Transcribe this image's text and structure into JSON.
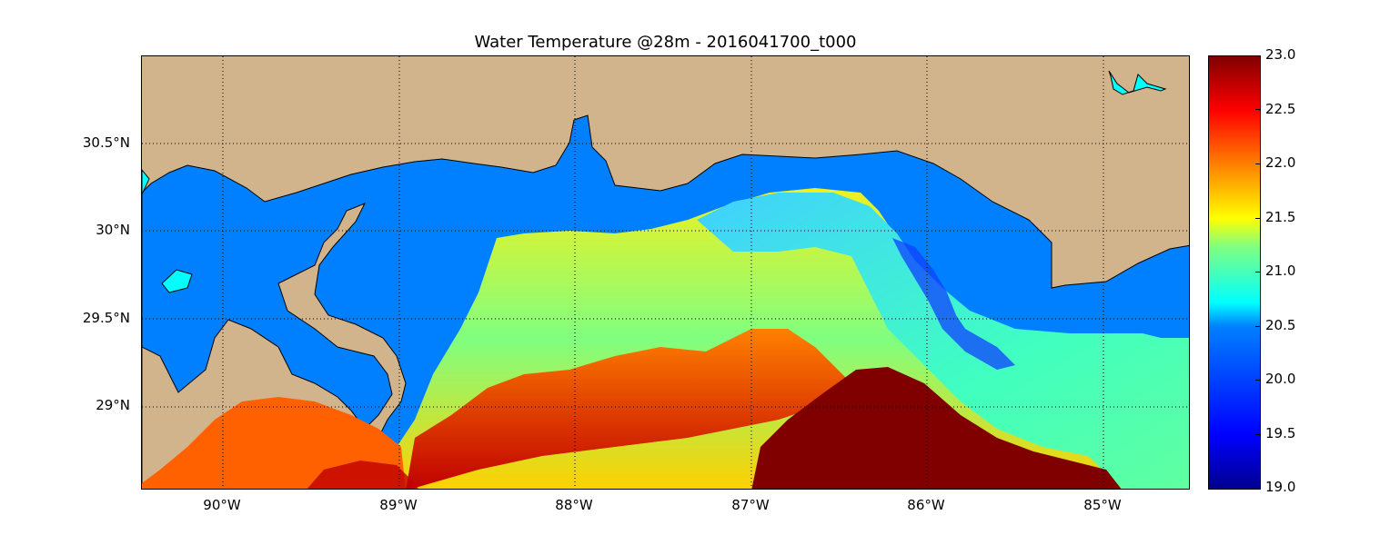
{
  "title": "Water Temperature @28m - 2016041700_t000",
  "map": {
    "lon_ticks": [
      "90°W",
      "89°W",
      "88°W",
      "87°W",
      "86°W",
      "85°W"
    ],
    "lat_ticks": [
      "30.5°N",
      "30°N",
      "29.5°N",
      "29°N"
    ],
    "land_color": "#d2b48c",
    "water_color": "#0080ff",
    "lake_color": "#00ffff",
    "grid": "dotted"
  },
  "colorbar": {
    "colormap": "jet",
    "ticks": [
      "23.0",
      "22.5",
      "22.0",
      "21.5",
      "21.0",
      "20.5",
      "20.0",
      "19.5",
      "19.0"
    ],
    "min": 19.0,
    "max": 23.0
  }
}
